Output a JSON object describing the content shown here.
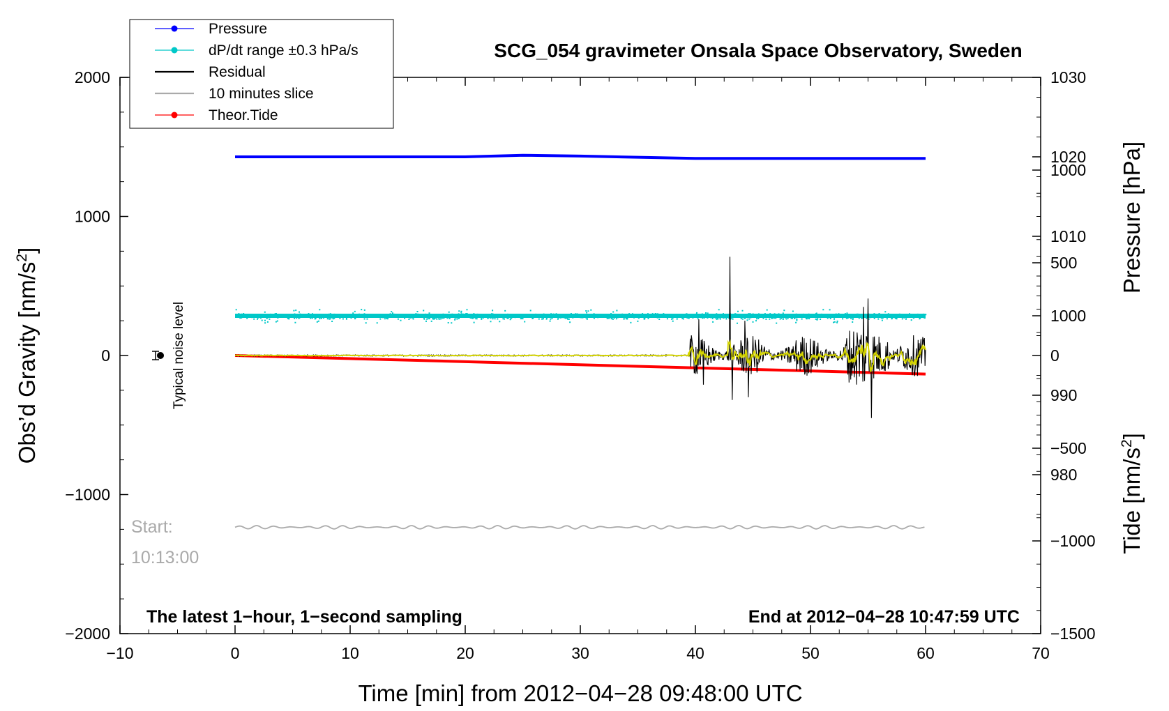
{
  "chart_data": {
    "type": "line",
    "title": "SCG_054 gravimeter Onsala Space Observatory, Sweden",
    "xlabel": "Time [min] from 2012−04−28 09:48:00 UTC",
    "ylabel_left": "Obs’d Gravity [nm/s",
    "ylabel_left_sup": "2",
    "ylabel_left_close": "]",
    "ylabel_right_pressure": "Pressure [hPa]",
    "ylabel_right_tide": "Tide [nm/s",
    "ylabel_right_tide_sup": "2",
    "ylabel_right_tide_close": "]",
    "xlim": [
      -10,
      70
    ],
    "ylim": [
      -2000,
      2000
    ],
    "x_ticks": [
      -10,
      0,
      10,
      20,
      30,
      40,
      50,
      60,
      70
    ],
    "x_tick_labels": [
      "−10",
      "0",
      "10",
      "20",
      "30",
      "40",
      "50",
      "60",
      "70"
    ],
    "y_ticks": [
      -2000,
      -1000,
      0,
      1000,
      2000
    ],
    "y_tick_labels": [
      "−2000",
      "−1000",
      "0",
      "1000",
      "2000"
    ],
    "pressure_axis": {
      "ticks": [
        980,
        990,
        1000,
        1010,
        1020,
        1030
      ],
      "tick_labels": [
        "980",
        "990",
        "1000",
        "1010",
        "1020",
        "1030"
      ],
      "range": [
        960,
        1030
      ]
    },
    "tide_axis": {
      "ticks": [
        -1500,
        -1000,
        -500,
        0,
        500,
        1000
      ],
      "tick_labels": [
        "−1500",
        "−1000",
        "−500",
        "0",
        "500",
        "1000"
      ],
      "range": [
        -1500,
        1500
      ]
    },
    "series": [
      {
        "name": "Pressure",
        "color": "#0000ff",
        "x": [
          0,
          10,
          20,
          25,
          30,
          40,
          50,
          60
        ],
        "y_hpa": [
          1020,
          1020,
          1020,
          1020.2,
          1020.1,
          1019.8,
          1019.8,
          1019.8
        ]
      },
      {
        "name": "dP/dt range ±0.3 hPa/s",
        "color": "#00c8c8",
        "x_range": [
          0,
          60
        ],
        "y_hpa": 1000,
        "spread_hpa": 0.7
      },
      {
        "name": "Residual",
        "color": "#000000",
        "x_range": [
          0,
          60
        ],
        "quiet_until_min": 39.5,
        "quiet_amplitude": 10,
        "spikes": [
          {
            "x": 40.3,
            "y": 260
          },
          {
            "x": 40.7,
            "y": -210
          },
          {
            "x": 43.0,
            "y": 710
          },
          {
            "x": 43.2,
            "y": -320
          },
          {
            "x": 44.3,
            "y": 250
          },
          {
            "x": 44.6,
            "y": -300
          },
          {
            "x": 55.0,
            "y": 410
          },
          {
            "x": 55.3,
            "y": -450
          },
          {
            "x": 54.6,
            "y": 350
          }
        ]
      },
      {
        "name": "10 minutes slice",
        "color": "#aaaaaa",
        "x_range": [
          0,
          60
        ],
        "y": -1235,
        "amplitude": 12
      },
      {
        "name": "Theor.Tide",
        "color": "#ff0000",
        "x": [
          0,
          60
        ],
        "y_tide": [
          0,
          -100
        ]
      }
    ],
    "filtered_residual_color": "#d4d400",
    "noise_marker": {
      "x": -7,
      "y": 0,
      "label": "Typical noise level"
    },
    "annotations": {
      "start_label": "Start:",
      "start_time": "10:13:00",
      "sampling": "The latest 1−hour, 1−second sampling",
      "end": "End at 2012−04−28 10:47:59 UTC"
    },
    "legend": [
      {
        "label": "Pressure",
        "color": "#0000ff",
        "marker": true
      },
      {
        "label": "dP/dt range ±0.3 hPa/s",
        "color": "#00c8c8",
        "marker": true
      },
      {
        "label": "Residual",
        "color": "#000000",
        "marker": false
      },
      {
        "label": "10 minutes slice",
        "color": "#aaaaaa",
        "marker": false
      },
      {
        "label": "Theor.Tide",
        "color": "#ff0000",
        "marker": true
      }
    ],
    "legend_position": "top-left"
  }
}
